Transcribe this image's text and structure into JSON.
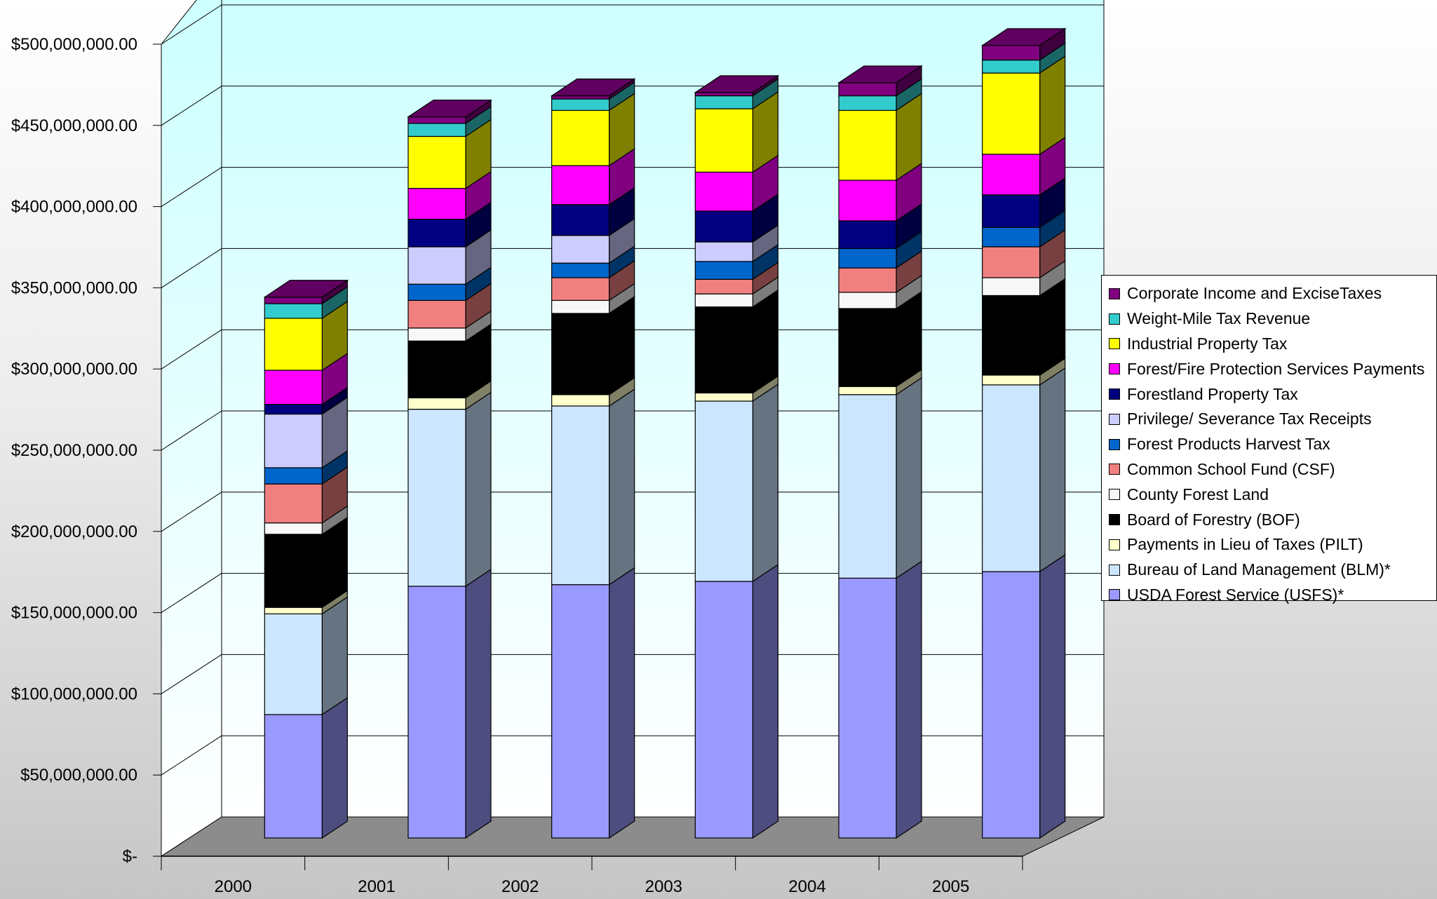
{
  "chart_data": {
    "type": "bar",
    "stacked": true,
    "three_d": true,
    "categories": [
      "2000",
      "2001",
      "2002",
      "2003",
      "2004",
      "2005"
    ],
    "y_ticks": [
      "$-",
      "$50,000,000.00",
      "$100,000,000.00",
      "$150,000,000.00",
      "$200,000,000.00",
      "$250,000,000.00",
      "$300,000,000.00",
      "$350,000,000.00",
      "$400,000,000.00",
      "$450,000,000.00",
      "$500,000,000.00"
    ],
    "ylim": [
      0,
      500000000
    ],
    "grid": true,
    "legend_position": "right",
    "series": [
      {
        "name": "USDA Forest Service (USFS)*",
        "color": "#9999ff",
        "values": [
          76000000,
          155000000,
          156000000,
          158000000,
          160000000,
          164000000
        ]
      },
      {
        "name": "Bureau of Land Management (BLM)*",
        "color": "#cce6ff",
        "values": [
          62000000,
          109000000,
          110000000,
          111000000,
          113000000,
          115000000
        ]
      },
      {
        "name": "Payments in Lieu of Taxes (PILT)",
        "color": "#ffffcc",
        "values": [
          4000000,
          7000000,
          7000000,
          5000000,
          5000000,
          6000000
        ]
      },
      {
        "name": "Board of Forestry (BOF)",
        "color": "#000000",
        "values": [
          45000000,
          35000000,
          50000000,
          53000000,
          48000000,
          49000000
        ]
      },
      {
        "name": "County Forest Land",
        "color": "#f8f8f8",
        "values": [
          7000000,
          8000000,
          8000000,
          8000000,
          10000000,
          11000000
        ]
      },
      {
        "name": "Common School Fund (CSF)",
        "color": "#f08080",
        "values": [
          24000000,
          17000000,
          14000000,
          9000000,
          15000000,
          19000000
        ]
      },
      {
        "name": "Forest Products Harvest Tax",
        "color": "#0066cc",
        "values": [
          10000000,
          10000000,
          9000000,
          11000000,
          12000000,
          12000000
        ]
      },
      {
        "name": "Privilege/ Severance Tax Receipts",
        "color": "#ccccff",
        "values": [
          33000000,
          23000000,
          17000000,
          12000000,
          0,
          0
        ]
      },
      {
        "name": "Forestland Property Tax",
        "color": "#000080",
        "values": [
          6000000,
          17000000,
          19000000,
          19000000,
          17000000,
          20000000
        ]
      },
      {
        "name": "Forest/Fire Protection Services Payments",
        "color": "#ff00ff",
        "values": [
          21000000,
          19000000,
          24000000,
          24000000,
          25000000,
          25000000
        ]
      },
      {
        "name": "Industrial Property Tax",
        "color": "#ffff00",
        "values": [
          32000000,
          32000000,
          34000000,
          39000000,
          43000000,
          50000000
        ]
      },
      {
        "name": "Weight-Mile Tax Revenue",
        "color": "#33cccc",
        "values": [
          9000000,
          8000000,
          7000000,
          8000000,
          9000000,
          8000000
        ]
      },
      {
        "name": "Corporate Income and ExciseTaxes",
        "color": "#800080",
        "values": [
          4000000,
          4000000,
          2000000,
          2000000,
          8000000,
          9000000
        ]
      }
    ]
  }
}
